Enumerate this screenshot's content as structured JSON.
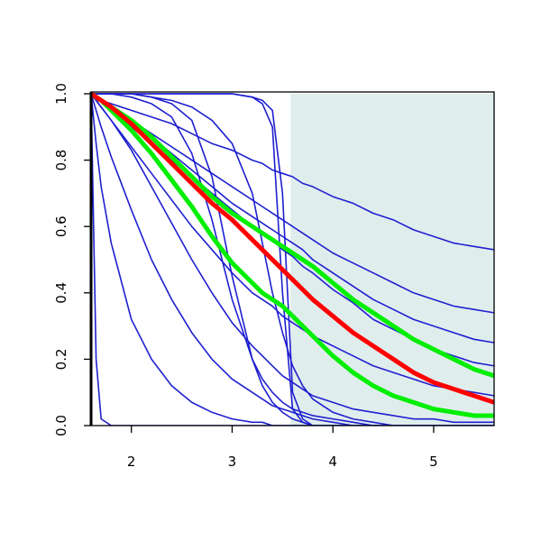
{
  "chart_data": {
    "type": "line",
    "x": [
      1.6,
      1.65,
      1.7,
      1.8,
      2.0,
      2.2,
      2.4,
      2.6,
      2.8,
      3.0,
      3.2,
      3.3,
      3.4,
      3.5,
      3.6,
      3.7,
      3.8,
      4.0,
      4.2,
      4.4,
      4.6,
      4.8,
      5.0,
      5.2,
      5.4,
      5.6
    ],
    "xlim": [
      1.6,
      5.6
    ],
    "xticks": [
      2,
      3,
      4,
      5
    ],
    "ylim": [
      0,
      1
    ],
    "yticks": [
      {
        "value": 0,
        "label": "0.0"
      },
      {
        "value": 0.2,
        "label": "0.2"
      },
      {
        "value": 0.4,
        "label": "0.4"
      },
      {
        "value": 0.6,
        "label": "0.6"
      },
      {
        "value": 0.8,
        "label": "0.8"
      },
      {
        "value": 1,
        "label": "1.0"
      }
    ],
    "shaded_region": {
      "xlim": [
        3.58,
        5.6
      ],
      "color": "#e0eded"
    },
    "series": [
      {
        "color": "#1f1fd0",
        "values": [
          1,
          0.99,
          0.98,
          0.97,
          0.95,
          0.93,
          0.91,
          0.88,
          0.85,
          0.83,
          0.8,
          0.79,
          0.77,
          0.76,
          0.75,
          0.73,
          0.72,
          0.69,
          0.67,
          0.64,
          0.62,
          0.59,
          0.57,
          0.55,
          0.54,
          0.53
        ]
      },
      {
        "color": "#1f1fd0",
        "values": [
          1,
          0.99,
          0.98,
          0.96,
          0.92,
          0.88,
          0.84,
          0.8,
          0.76,
          0.72,
          0.68,
          0.66,
          0.64,
          0.62,
          0.6,
          0.58,
          0.56,
          0.52,
          0.49,
          0.46,
          0.43,
          0.4,
          0.38,
          0.36,
          0.35,
          0.34
        ]
      },
      {
        "color": "#1f1fd0",
        "values": [
          1,
          0.99,
          0.98,
          0.96,
          0.92,
          0.87,
          0.82,
          0.77,
          0.72,
          0.67,
          0.63,
          0.61,
          0.59,
          0.57,
          0.55,
          0.53,
          0.5,
          0.46,
          0.42,
          0.38,
          0.35,
          0.32,
          0.3,
          0.28,
          0.26,
          0.25
        ]
      },
      {
        "color": "#1f1fd0",
        "values": [
          1,
          0.99,
          0.98,
          0.95,
          0.9,
          0.85,
          0.8,
          0.75,
          0.7,
          0.65,
          0.6,
          0.58,
          0.56,
          0.53,
          0.51,
          0.48,
          0.46,
          0.41,
          0.37,
          0.32,
          0.29,
          0.26,
          0.23,
          0.21,
          0.19,
          0.18
        ]
      },
      {
        "color": "#1f1fd0",
        "values": [
          1,
          1,
          1,
          1,
          1,
          1,
          1,
          1,
          1,
          1,
          0.99,
          0.97,
          0.9,
          0.4,
          0.05,
          0.01,
          0,
          0,
          0,
          0,
          0,
          0,
          0,
          0,
          0,
          0
        ]
      },
      {
        "color": "#1f1fd0",
        "values": [
          1,
          1,
          1,
          1,
          1,
          1,
          1,
          1,
          1,
          1,
          0.99,
          0.98,
          0.95,
          0.7,
          0.1,
          0.02,
          0,
          0,
          0,
          0,
          0,
          0,
          0,
          0,
          0,
          0
        ]
      },
      {
        "color": "#1f1fd0",
        "values": [
          1,
          1,
          1,
          1,
          1,
          0.99,
          0.97,
          0.92,
          0.75,
          0.45,
          0.2,
          0.12,
          0.07,
          0.04,
          0.02,
          0.01,
          0,
          0,
          0,
          0,
          0,
          0,
          0,
          0,
          0,
          0
        ]
      },
      {
        "color": "#1f1fd0",
        "values": [
          1,
          0.2,
          0.02,
          0,
          0,
          0,
          0,
          0,
          0,
          0,
          0,
          0,
          0,
          0,
          0,
          0,
          0,
          0,
          0,
          0,
          0,
          0,
          0,
          0,
          0,
          0
        ]
      },
      {
        "color": "#1f1fd0",
        "values": [
          1,
          0.85,
          0.72,
          0.55,
          0.32,
          0.2,
          0.12,
          0.07,
          0.04,
          0.02,
          0.01,
          0.01,
          0,
          0,
          0,
          0,
          0,
          0,
          0,
          0,
          0,
          0,
          0,
          0,
          0,
          0
        ]
      },
      {
        "color": "#1f1fd0",
        "values": [
          1,
          0.95,
          0.9,
          0.81,
          0.65,
          0.5,
          0.38,
          0.28,
          0.2,
          0.14,
          0.1,
          0.08,
          0.06,
          0.05,
          0.04,
          0.03,
          0.02,
          0.01,
          0,
          0,
          0,
          0,
          0,
          0,
          0,
          0
        ]
      },
      {
        "color": "#1f1fd0",
        "values": [
          1,
          0.98,
          0.96,
          0.92,
          0.83,
          0.72,
          0.61,
          0.5,
          0.4,
          0.31,
          0.24,
          0.21,
          0.18,
          0.15,
          0.13,
          0.11,
          0.09,
          0.07,
          0.05,
          0.04,
          0.03,
          0.02,
          0.02,
          0.01,
          0.01,
          0.01
        ]
      },
      {
        "color": "#1f1fd0",
        "values": [
          1,
          1,
          1,
          1,
          0.99,
          0.97,
          0.93,
          0.82,
          0.62,
          0.38,
          0.2,
          0.14,
          0.1,
          0.07,
          0.05,
          0.04,
          0.03,
          0.02,
          0.01,
          0,
          0,
          0,
          0,
          0,
          0,
          0
        ]
      },
      {
        "color": "#1f1fd0",
        "values": [
          1,
          1,
          1,
          1,
          1,
          0.99,
          0.98,
          0.96,
          0.92,
          0.85,
          0.7,
          0.55,
          0.4,
          0.28,
          0.18,
          0.12,
          0.08,
          0.04,
          0.02,
          0.01,
          0,
          0,
          0,
          0,
          0,
          0
        ]
      },
      {
        "color": "#1f1fd0",
        "values": [
          1,
          0.98,
          0.96,
          0.92,
          0.84,
          0.76,
          0.68,
          0.6,
          0.53,
          0.46,
          0.4,
          0.38,
          0.36,
          0.33,
          0.31,
          0.29,
          0.27,
          0.24,
          0.21,
          0.18,
          0.16,
          0.14,
          0.12,
          0.11,
          0.1,
          0.09
        ]
      },
      {
        "color": "#00ee00",
        "values": [
          1,
          0.99,
          0.98,
          0.96,
          0.92,
          0.87,
          0.81,
          0.75,
          0.69,
          0.64,
          0.6,
          0.58,
          0.56,
          0.54,
          0.52,
          0.5,
          0.48,
          0.43,
          0.38,
          0.34,
          0.3,
          0.26,
          0.23,
          0.2,
          0.17,
          0.15
        ]
      },
      {
        "color": "#00ee00",
        "values": [
          1,
          0.99,
          0.98,
          0.95,
          0.89,
          0.82,
          0.74,
          0.66,
          0.57,
          0.49,
          0.43,
          0.4,
          0.38,
          0.36,
          0.33,
          0.3,
          0.27,
          0.21,
          0.16,
          0.12,
          0.09,
          0.07,
          0.05,
          0.04,
          0.03,
          0.03
        ]
      },
      {
        "color": "#ff0000",
        "values": [
          1,
          0.99,
          0.98,
          0.96,
          0.91,
          0.85,
          0.79,
          0.73,
          0.67,
          0.62,
          0.56,
          0.53,
          0.5,
          0.47,
          0.44,
          0.41,
          0.38,
          0.33,
          0.28,
          0.24,
          0.2,
          0.16,
          0.13,
          0.11,
          0.09,
          0.07
        ]
      }
    ]
  }
}
